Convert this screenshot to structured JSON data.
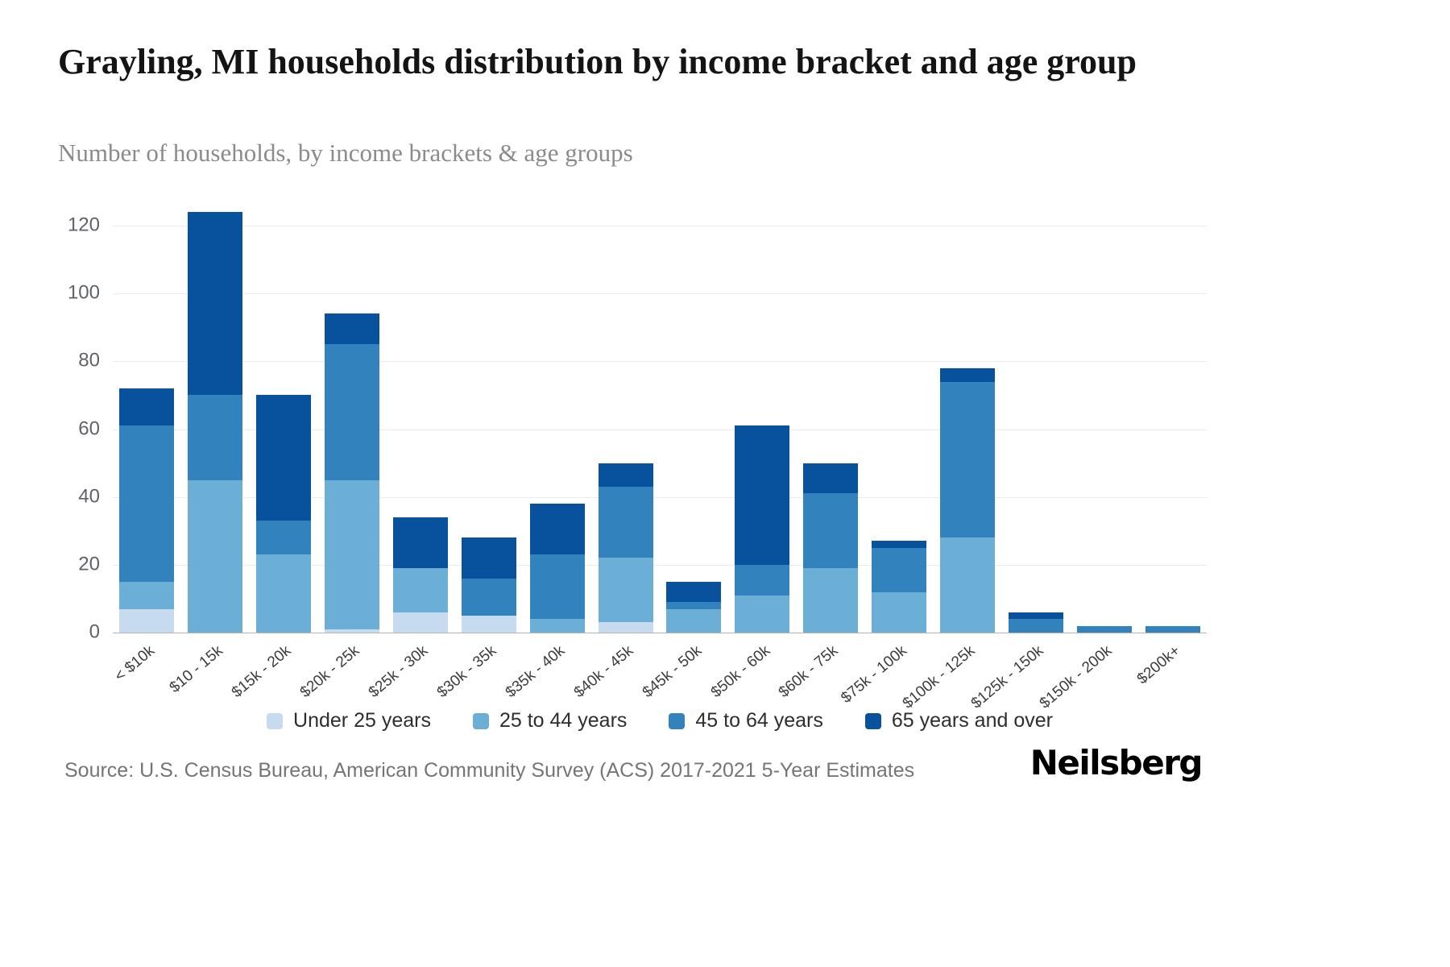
{
  "header": {
    "title": "Grayling, MI households distribution by income bracket and age group",
    "subtitle": "Number of households, by income brackets & age groups"
  },
  "footer": {
    "source": "Source: U.S. Census Bureau, American Community Survey (ACS) 2017-2021 5-Year Estimates",
    "brand": "Neilsberg"
  },
  "chart_data": {
    "type": "bar",
    "stacked": true,
    "title": "Grayling, MI households distribution by income bracket and age group",
    "subtitle": "Number of households, by income brackets & age groups",
    "xlabel": "",
    "ylabel": "Number of households",
    "ylim": [
      0,
      120
    ],
    "yticks": [
      0,
      20,
      40,
      60,
      80,
      100,
      120
    ],
    "grid": true,
    "legend_position": "bottom",
    "categories": [
      "< $10k",
      "$10 - 15k",
      "$15k - 20k",
      "$20k - 25k",
      "$25k - 30k",
      "$30k - 35k",
      "$35k - 40k",
      "$40k - 45k",
      "$45k - 50k",
      "$50k - 60k",
      "$60k - 75k",
      "$75k - 100k",
      "$100k - 125k",
      "$125k - 150k",
      "$150k - 200k",
      "$200k+"
    ],
    "series": [
      {
        "name": "Under 25 years",
        "color": "#c6dbef",
        "values": [
          7,
          0,
          0,
          1,
          6,
          5,
          0,
          3,
          0,
          0,
          0,
          0,
          0,
          0,
          0,
          0
        ]
      },
      {
        "name": "25 to 44 years",
        "color": "#6baed6",
        "values": [
          8,
          45,
          23,
          44,
          13,
          0,
          4,
          19,
          7,
          11,
          19,
          12,
          28,
          0,
          0,
          0
        ]
      },
      {
        "name": "45 to 64 years",
        "color": "#3182bd",
        "values": [
          46,
          25,
          10,
          40,
          0,
          11,
          19,
          21,
          2,
          9,
          22,
          13,
          46,
          4,
          2,
          2
        ]
      },
      {
        "name": "65 years and over",
        "color": "#08519c",
        "values": [
          11,
          54,
          37,
          9,
          15,
          12,
          15,
          7,
          6,
          41,
          9,
          2,
          4,
          2,
          0,
          0
        ]
      }
    ],
    "totals": [
      72,
      124,
      70,
      94,
      34,
      28,
      38,
      50,
      15,
      61,
      50,
      27,
      78,
      6,
      2,
      2
    ]
  }
}
